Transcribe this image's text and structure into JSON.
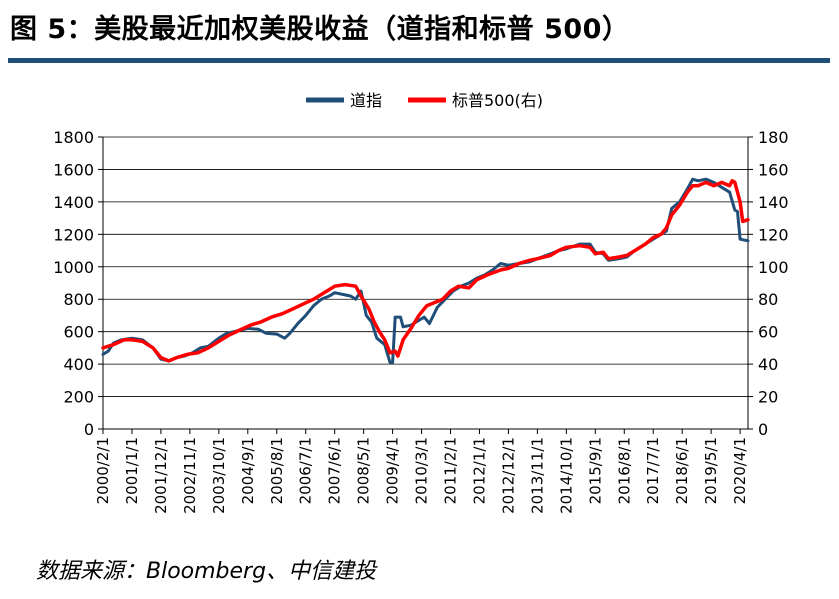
{
  "figure": {
    "title": "图 5：美股最近加权美股收益（道指和标普 500）",
    "source": "数据来源：Bloomberg、中信建投"
  },
  "chart_data": {
    "type": "line",
    "legend_position": "top-center",
    "grid": true,
    "x_ticks": [
      "2000/2/1",
      "2001/1/1",
      "2001/12/1",
      "2002/11/1",
      "2003/10/1",
      "2004/9/1",
      "2005/8/1",
      "2006/7/1",
      "2007/6/1",
      "2008/5/1",
      "2009/4/1",
      "2010/3/1",
      "2011/2/1",
      "2012/1/1",
      "2012/12/1",
      "2013/11/1",
      "2014/10/1",
      "2015/9/1",
      "2016/8/1",
      "2017/7/1",
      "2018/6/1",
      "2019/5/1",
      "2020/4/1"
    ],
    "x_range": [
      "2000-02-01",
      "2020-07-01"
    ],
    "y_left": {
      "ticks": [
        "0",
        "200",
        "400",
        "600",
        "800",
        "1000",
        "1200",
        "1400",
        "1600",
        "1800"
      ],
      "range": [
        0,
        1800
      ]
    },
    "y_right": {
      "ticks": [
        "0",
        "20",
        "40",
        "60",
        "80",
        "100",
        "120",
        "140",
        "160",
        "180"
      ],
      "range": [
        0,
        180
      ]
    },
    "series": [
      {
        "name": "道指",
        "axis": "left",
        "color": "#1f4e79",
        "points": [
          [
            "2000-02",
            460
          ],
          [
            "2000-04",
            480
          ],
          [
            "2000-06",
            530
          ],
          [
            "2000-09",
            550
          ],
          [
            "2001-01",
            560
          ],
          [
            "2001-05",
            550
          ],
          [
            "2001-09",
            500
          ],
          [
            "2001-12",
            430
          ],
          [
            "2002-03",
            420
          ],
          [
            "2002-06",
            440
          ],
          [
            "2002-09",
            450
          ],
          [
            "2002-12",
            470
          ],
          [
            "2003-03",
            500
          ],
          [
            "2003-06",
            510
          ],
          [
            "2003-10",
            560
          ],
          [
            "2004-01",
            590
          ],
          [
            "2004-05",
            605
          ],
          [
            "2004-09",
            620
          ],
          [
            "2005-01",
            615
          ],
          [
            "2005-04",
            590
          ],
          [
            "2005-08",
            585
          ],
          [
            "2005-11",
            560
          ],
          [
            "2006-01",
            590
          ],
          [
            "2006-04",
            650
          ],
          [
            "2006-07",
            700
          ],
          [
            "2006-10",
            760
          ],
          [
            "2007-01",
            800
          ],
          [
            "2007-04",
            820
          ],
          [
            "2007-06",
            840
          ],
          [
            "2007-09",
            830
          ],
          [
            "2007-12",
            820
          ],
          [
            "2008-02",
            800
          ],
          [
            "2008-04",
            850
          ],
          [
            "2008-06",
            700
          ],
          [
            "2008-08",
            660
          ],
          [
            "2008-10",
            560
          ],
          [
            "2009-01",
            520
          ],
          [
            "2009-03",
            410
          ],
          [
            "2009-04",
            410
          ],
          [
            "2009-05",
            690
          ],
          [
            "2009-07",
            690
          ],
          [
            "2009-08",
            630
          ],
          [
            "2009-11",
            640
          ],
          [
            "2010-01",
            660
          ],
          [
            "2010-04",
            690
          ],
          [
            "2010-06",
            650
          ],
          [
            "2010-09",
            750
          ],
          [
            "2010-12",
            800
          ],
          [
            "2011-03",
            850
          ],
          [
            "2011-06",
            880
          ],
          [
            "2011-09",
            900
          ],
          [
            "2011-12",
            930
          ],
          [
            "2012-03",
            950
          ],
          [
            "2012-06",
            980
          ],
          [
            "2012-09",
            1020
          ],
          [
            "2012-12",
            1010
          ],
          [
            "2013-04",
            1020
          ],
          [
            "2013-08",
            1030
          ],
          [
            "2013-11",
            1050
          ],
          [
            "2014-04",
            1080
          ],
          [
            "2014-07",
            1100
          ],
          [
            "2014-10",
            1110
          ],
          [
            "2015-03",
            1140
          ],
          [
            "2015-07",
            1140
          ],
          [
            "2015-09",
            1090
          ],
          [
            "2015-12",
            1080
          ],
          [
            "2016-02",
            1040
          ],
          [
            "2016-06",
            1050
          ],
          [
            "2016-09",
            1060
          ],
          [
            "2016-12",
            1100
          ],
          [
            "2017-04",
            1140
          ],
          [
            "2017-07",
            1170
          ],
          [
            "2017-10",
            1200
          ],
          [
            "2017-12",
            1220
          ],
          [
            "2018-02",
            1360
          ],
          [
            "2018-05",
            1400
          ],
          [
            "2018-08",
            1480
          ],
          [
            "2018-10",
            1540
          ],
          [
            "2018-12",
            1530
          ],
          [
            "2019-03",
            1540
          ],
          [
            "2019-06",
            1520
          ],
          [
            "2019-09",
            1490
          ],
          [
            "2019-12",
            1460
          ],
          [
            "2020-02",
            1350
          ],
          [
            "2020-03",
            1340
          ],
          [
            "2020-04",
            1170
          ],
          [
            "2020-07",
            1160
          ]
        ]
      },
      {
        "name": "标普500(右)",
        "axis": "right",
        "color": "#ff0000",
        "points": [
          [
            "2000-02",
            50
          ],
          [
            "2000-06",
            52
          ],
          [
            "2000-10",
            55
          ],
          [
            "2001-01",
            55
          ],
          [
            "2001-05",
            54
          ],
          [
            "2001-09",
            50
          ],
          [
            "2001-12",
            44
          ],
          [
            "2002-03",
            42
          ],
          [
            "2002-06",
            44
          ],
          [
            "2002-10",
            46
          ],
          [
            "2003-02",
            47
          ],
          [
            "2003-06",
            50
          ],
          [
            "2003-10",
            54
          ],
          [
            "2004-02",
            58
          ],
          [
            "2004-06",
            61
          ],
          [
            "2004-10",
            64
          ],
          [
            "2005-02",
            66
          ],
          [
            "2005-06",
            69
          ],
          [
            "2005-10",
            71
          ],
          [
            "2006-02",
            74
          ],
          [
            "2006-06",
            77
          ],
          [
            "2006-10",
            80
          ],
          [
            "2007-02",
            84
          ],
          [
            "2007-06",
            88
          ],
          [
            "2007-10",
            89
          ],
          [
            "2008-02",
            88
          ],
          [
            "2008-04",
            82
          ],
          [
            "2008-07",
            74
          ],
          [
            "2008-09",
            66
          ],
          [
            "2008-11",
            60
          ],
          [
            "2009-01",
            55
          ],
          [
            "2009-03",
            47
          ],
          [
            "2009-05",
            48
          ],
          [
            "2009-06",
            45
          ],
          [
            "2009-08",
            55
          ],
          [
            "2009-11",
            62
          ],
          [
            "2010-02",
            70
          ],
          [
            "2010-05",
            76
          ],
          [
            "2010-08",
            78
          ],
          [
            "2010-11",
            80
          ],
          [
            "2011-02",
            85
          ],
          [
            "2011-05",
            88
          ],
          [
            "2011-09",
            87
          ],
          [
            "2011-12",
            92
          ],
          [
            "2012-04",
            95
          ],
          [
            "2012-09",
            98
          ],
          [
            "2012-12",
            99
          ],
          [
            "2013-04",
            102
          ],
          [
            "2013-08",
            104
          ],
          [
            "2013-11",
            105
          ],
          [
            "2014-04",
            107
          ],
          [
            "2014-07",
            110
          ],
          [
            "2014-10",
            112
          ],
          [
            "2015-03",
            113
          ],
          [
            "2015-07",
            112
          ],
          [
            "2015-09",
            108
          ],
          [
            "2015-12",
            109
          ],
          [
            "2016-02",
            105
          ],
          [
            "2016-06",
            106
          ],
          [
            "2016-09",
            107
          ],
          [
            "2016-12",
            110
          ],
          [
            "2017-04",
            114
          ],
          [
            "2017-07",
            118
          ],
          [
            "2017-10",
            120
          ],
          [
            "2017-12",
            124
          ],
          [
            "2018-02",
            132
          ],
          [
            "2018-05",
            138
          ],
          [
            "2018-08",
            146
          ],
          [
            "2018-10",
            150
          ],
          [
            "2018-12",
            150
          ],
          [
            "2019-03",
            152
          ],
          [
            "2019-06",
            150
          ],
          [
            "2019-09",
            152
          ],
          [
            "2019-12",
            150
          ],
          [
            "2020-01",
            153
          ],
          [
            "2020-02",
            152
          ],
          [
            "2020-03",
            146
          ],
          [
            "2020-04",
            140
          ],
          [
            "2020-05",
            128
          ],
          [
            "2020-07",
            129
          ]
        ]
      }
    ]
  }
}
